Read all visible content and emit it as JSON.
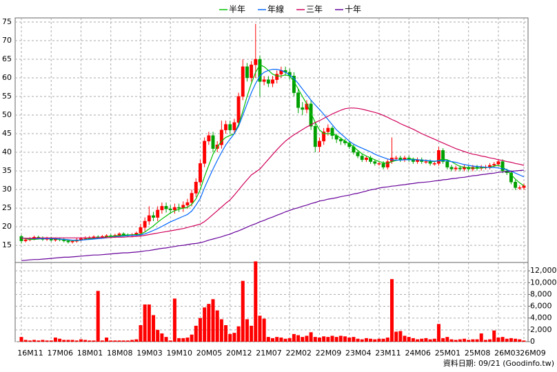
{
  "chart_data": {
    "type": "candlestick",
    "categories": [
      "16M11",
      null,
      null,
      null,
      null,
      null,
      null,
      "17M06",
      null,
      null,
      null,
      null,
      null,
      null,
      "18M01",
      null,
      null,
      null,
      null,
      null,
      null,
      "18M08",
      null,
      null,
      null,
      null,
      null,
      null,
      "19M03",
      null,
      null,
      null,
      null,
      null,
      null,
      "19M10",
      null,
      null,
      null,
      null,
      null,
      null,
      "20M05",
      null,
      null,
      null,
      null,
      null,
      null,
      "20M12",
      null,
      null,
      null,
      null,
      null,
      null,
      "21M07",
      null,
      null,
      null,
      null,
      null,
      null,
      "22M02",
      null,
      null,
      null,
      null,
      null,
      null,
      "22M09",
      null,
      null,
      null,
      null,
      null,
      null,
      "23M04",
      null,
      null,
      null,
      null,
      null,
      null,
      "23M11",
      null,
      null,
      null,
      null,
      null,
      null,
      "24M06",
      null,
      null,
      null,
      null,
      null,
      null,
      "25M01",
      null,
      null,
      null,
      null,
      null,
      null,
      "25M08",
      null,
      null,
      null,
      null,
      null,
      null,
      "26M03",
      null,
      null,
      null,
      null,
      null,
      "26M09"
    ],
    "open": [
      17.4,
      16.2,
      16.5,
      16.8,
      17.2,
      17.0,
      16.6,
      16.9,
      16.4,
      16.7,
      16.5,
      16.2,
      15.9,
      16.1,
      16.5,
      16.8,
      17.0,
      17.1,
      17.3,
      17.2,
      17.4,
      17.6,
      17.4,
      17.7,
      18.1,
      17.8,
      17.6,
      17.9,
      18.3,
      19.8,
      21.5,
      23.0,
      22.5,
      24.5,
      25.5,
      24.8,
      24.5,
      25.2,
      25.0,
      25.8,
      26.5,
      29.0,
      32.0,
      37.0,
      43.0,
      44.5,
      41.0,
      42.0,
      46.0,
      47.5,
      46.0,
      48.0,
      55.0,
      63.0,
      60.0,
      63.5,
      65.0,
      59.0,
      59.5,
      58.5,
      59.5,
      61.0,
      62.0,
      61.5,
      60.5,
      56.0,
      52.0,
      51.5,
      53.0,
      47.0,
      41.5,
      43.0,
      45.5,
      46.5,
      44.5,
      43.5,
      43.0,
      42.5,
      41.5,
      40.0,
      39.0,
      38.0,
      38.5,
      37.5,
      37.0,
      37.0,
      36.0,
      37.5,
      38.5,
      38.5,
      38.0,
      38.5,
      38.0,
      37.5,
      38.0,
      37.5,
      37.5,
      37.0,
      37.0,
      40.5,
      37.5,
      36.0,
      35.5,
      35.8,
      35.5,
      36.0,
      35.5,
      36.0,
      35.7,
      36.0,
      36.0,
      36.5,
      36.8,
      37.5,
      35.0,
      34.5,
      32.0,
      30.5,
      30.5
    ],
    "high": [
      17.8,
      16.9,
      17.2,
      17.6,
      17.6,
      17.4,
      17.3,
      17.3,
      17.1,
      17.1,
      16.9,
      16.6,
      16.5,
      16.9,
      17.2,
      17.4,
      17.5,
      17.7,
      17.7,
      17.8,
      18.0,
      18.0,
      18.1,
      18.5,
      18.5,
      18.2,
      18.3,
      18.7,
      20.8,
      22.5,
      25.5,
      24.0,
      25.5,
      26.5,
      26.5,
      25.8,
      26.2,
      26.2,
      26.8,
      27.5,
      30.0,
      33.0,
      38.0,
      44.0,
      45.5,
      45.5,
      43.0,
      48.5,
      48.5,
      48.5,
      49.0,
      56.0,
      65.0,
      64.0,
      64.5,
      74.5,
      66.0,
      60.5,
      60.5,
      60.5,
      62.0,
      63.0,
      63.0,
      62.5,
      61.5,
      57.0,
      53.5,
      54.0,
      54.0,
      48.0,
      44.0,
      46.5,
      47.5,
      47.0,
      45.0,
      44.0,
      43.6,
      43.1,
      42.1,
      40.6,
      39.6,
      39.1,
      39.1,
      38.1,
      37.6,
      37.6,
      38.1,
      44.0,
      39.1,
      39.1,
      39.1,
      39.1,
      38.6,
      38.6,
      38.6,
      38.1,
      38.1,
      37.6,
      41.5,
      41.1,
      38.1,
      36.6,
      36.4,
      36.4,
      36.6,
      36.6,
      36.6,
      36.6,
      36.6,
      36.6,
      37.1,
      37.4,
      38.1,
      38.1,
      35.6,
      35.1,
      32.6,
      31.1,
      31.6
    ],
    "low": [
      15.5,
      15.8,
      16.1,
      16.4,
      16.6,
      16.2,
      16.2,
      16.0,
      16.0,
      16.1,
      15.8,
      15.5,
      15.5,
      15.7,
      16.1,
      16.4,
      16.6,
      16.7,
      16.8,
      16.8,
      17.0,
      17.0,
      17.0,
      17.3,
      17.4,
      17.2,
      17.2,
      17.5,
      17.3,
      18.8,
      20.5,
      21.5,
      21.5,
      23.5,
      23.8,
      23.5,
      23.5,
      24.0,
      24.0,
      24.8,
      25.5,
      28.0,
      31.0,
      36.0,
      42.0,
      40.0,
      40.0,
      41.0,
      45.0,
      45.0,
      45.0,
      47.0,
      54.0,
      59.0,
      59.0,
      60.0,
      55.0,
      58.0,
      57.5,
      57.5,
      58.5,
      60.0,
      60.5,
      59.5,
      55.0,
      50.5,
      50.0,
      50.5,
      46.0,
      40.0,
      40.0,
      42.0,
      44.5,
      43.5,
      42.5,
      42.0,
      41.9,
      40.9,
      39.4,
      38.4,
      37.4,
      37.4,
      36.9,
      36.4,
      36.4,
      35.4,
      35.4,
      36.9,
      37.9,
      37.4,
      37.4,
      37.4,
      36.9,
      36.9,
      36.9,
      36.9,
      36.4,
      36.4,
      36.4,
      36.9,
      35.4,
      34.9,
      34.9,
      34.9,
      34.9,
      34.9,
      34.9,
      35.1,
      35.1,
      35.4,
      35.4,
      35.9,
      36.2,
      34.4,
      33.9,
      31.4,
      29.9,
      29.9,
      29.9
    ],
    "close": [
      16.2,
      16.5,
      16.8,
      17.2,
      17.0,
      16.6,
      16.9,
      16.4,
      16.7,
      16.5,
      16.2,
      15.9,
      16.1,
      16.5,
      16.8,
      17.0,
      17.1,
      17.3,
      17.2,
      17.4,
      17.6,
      17.4,
      17.7,
      18.1,
      17.8,
      17.6,
      17.9,
      18.3,
      19.8,
      21.5,
      23.0,
      22.5,
      24.5,
      25.5,
      24.8,
      24.5,
      25.2,
      25.0,
      25.8,
      26.5,
      29.0,
      32.0,
      37.0,
      43.0,
      44.5,
      41.0,
      42.0,
      46.0,
      47.5,
      46.0,
      48.0,
      55.0,
      63.0,
      60.0,
      63.5,
      65.0,
      59.0,
      59.5,
      58.5,
      59.5,
      61.0,
      62.0,
      61.5,
      60.5,
      56.0,
      52.0,
      51.5,
      53.0,
      47.0,
      41.5,
      43.0,
      45.5,
      46.5,
      44.5,
      43.5,
      43.0,
      42.5,
      41.5,
      40.0,
      39.0,
      38.0,
      38.5,
      37.5,
      37.0,
      37.0,
      36.0,
      37.5,
      38.5,
      38.5,
      38.0,
      38.5,
      38.0,
      37.5,
      38.0,
      37.5,
      37.5,
      37.0,
      37.0,
      40.5,
      37.5,
      36.0,
      35.5,
      35.8,
      35.5,
      36.0,
      35.5,
      36.0,
      35.7,
      36.0,
      36.0,
      36.5,
      36.8,
      37.5,
      35.0,
      34.5,
      32.0,
      30.5,
      30.5,
      31.0
    ],
    "up_color": "#ff0000",
    "down_color": "#00a000",
    "series": [
      {
        "name": "半年",
        "color": "#00c000",
        "values": [
          17.0,
          16.8,
          16.6,
          16.6,
          16.7,
          16.8,
          16.8,
          16.8,
          16.7,
          16.6,
          16.5,
          16.4,
          16.3,
          16.3,
          16.4,
          16.6,
          16.8,
          16.9,
          17.0,
          17.1,
          17.3,
          17.4,
          17.5,
          17.6,
          17.7,
          17.8,
          17.8,
          17.9,
          18.0,
          18.6,
          19.4,
          20.2,
          21.2,
          22.1,
          22.9,
          23.7,
          24.3,
          24.7,
          25.0,
          25.2,
          26.0,
          27.5,
          30.0,
          33.5,
          36.5,
          39.5,
          41.5,
          43.0,
          44.0,
          44.5,
          45.0,
          47.5,
          51.0,
          55.0,
          58.5,
          61.5,
          63.5,
          63.0,
          62.0,
          61.0,
          60.5,
          60.5,
          60.8,
          60.5,
          59.0,
          57.0,
          55.0,
          53.0,
          50.5,
          48.0,
          46.0,
          45.0,
          45.0,
          45.0,
          44.5,
          43.8,
          43.0,
          42.3,
          41.5,
          40.5,
          39.6,
          39.0,
          38.5,
          38.0,
          37.5,
          37.2,
          37.0,
          37.5,
          37.8,
          38.0,
          38.0,
          38.2,
          38.2,
          38.0,
          37.9,
          37.8,
          37.6,
          37.5,
          37.8,
          38.2,
          38.0,
          37.5,
          36.8,
          36.2,
          36.0,
          35.8,
          35.8,
          35.7,
          35.8,
          35.9,
          36.0,
          36.3,
          36.5,
          36.0,
          35.2,
          34.0,
          32.8,
          31.8,
          31.0
        ]
      },
      {
        "name": "年線",
        "color": "#0066ff",
        "values": [
          17.0,
          16.9,
          16.8,
          16.8,
          16.8,
          16.8,
          16.8,
          16.8,
          16.8,
          16.7,
          16.6,
          16.5,
          16.4,
          16.4,
          16.4,
          16.5,
          16.6,
          16.7,
          16.8,
          16.9,
          17.0,
          17.2,
          17.3,
          17.4,
          17.5,
          17.6,
          17.7,
          17.7,
          17.8,
          18.1,
          18.5,
          19.0,
          19.5,
          20.1,
          20.7,
          21.3,
          21.8,
          22.3,
          22.8,
          23.3,
          24.2,
          25.8,
          27.6,
          30.5,
          33.0,
          35.5,
          37.8,
          40.0,
          42.0,
          43.5,
          45.0,
          47.0,
          50.0,
          53.0,
          56.0,
          58.5,
          60.5,
          61.5,
          62.0,
          62.3,
          62.3,
          62.0,
          61.5,
          60.8,
          59.8,
          58.5,
          57.0,
          55.5,
          54.0,
          52.7,
          51.5,
          50.2,
          48.8,
          47.4,
          46.0,
          45.0,
          44.0,
          43.0,
          42.2,
          41.6,
          41.1,
          40.6,
          40.1,
          39.5,
          39.0,
          38.6,
          38.2,
          38.0,
          37.9,
          37.9,
          38.0,
          38.0,
          38.0,
          38.0,
          37.9,
          37.8,
          37.7,
          37.6,
          37.7,
          37.8,
          37.7,
          37.5,
          37.3,
          37.0,
          36.7,
          36.5,
          36.3,
          36.2,
          36.1,
          36.0,
          35.9,
          35.9,
          35.8,
          35.6,
          35.3,
          34.9,
          34.4,
          33.9,
          33.4
        ]
      },
      {
        "name": "三年",
        "color": "#d0005a",
        "values": [
          16.9,
          16.9,
          16.9,
          16.9,
          17.0,
          17.0,
          17.0,
          17.0,
          17.0,
          17.0,
          17.0,
          17.0,
          17.0,
          17.0,
          17.0,
          17.0,
          17.0,
          17.0,
          17.1,
          17.1,
          17.1,
          17.1,
          17.2,
          17.2,
          17.2,
          17.3,
          17.3,
          17.4,
          17.5,
          17.7,
          17.9,
          18.1,
          18.3,
          18.5,
          18.7,
          18.9,
          19.1,
          19.3,
          19.5,
          19.8,
          20.1,
          20.4,
          20.7,
          21.4,
          22.3,
          23.3,
          24.3,
          25.3,
          26.3,
          27.2,
          28.5,
          29.9,
          31.3,
          32.6,
          33.9,
          34.7,
          35.5,
          36.8,
          38.1,
          39.4,
          40.7,
          41.9,
          43.0,
          43.9,
          44.7,
          45.4,
          46.1,
          46.8,
          47.4,
          48.0,
          48.5,
          49.1,
          49.7,
          50.3,
          50.8,
          51.3,
          51.7,
          51.9,
          51.9,
          51.8,
          51.6,
          51.3,
          51.0,
          50.7,
          50.4,
          49.9,
          49.4,
          48.8,
          48.3,
          47.7,
          47.2,
          46.7,
          46.2,
          45.6,
          45.0,
          44.5,
          44.0,
          43.5,
          43.0,
          42.5,
          42.0,
          41.5,
          41.0,
          40.6,
          40.2,
          39.8,
          39.5,
          39.3,
          39.0,
          38.8,
          38.5,
          38.3,
          38.0,
          37.8,
          37.5,
          37.3,
          37.0,
          36.8,
          36.5
        ]
      },
      {
        "name": "十年",
        "color": "#660099",
        "values": [
          10.9,
          11.0,
          11.1,
          11.2,
          11.2,
          11.3,
          11.4,
          11.5,
          11.6,
          11.7,
          11.8,
          11.8,
          11.9,
          12.0,
          12.1,
          12.2,
          12.3,
          12.4,
          12.4,
          12.5,
          12.6,
          12.7,
          12.8,
          12.9,
          13.0,
          13.0,
          13.1,
          13.2,
          13.3,
          13.5,
          13.6,
          13.8,
          14.0,
          14.2,
          14.3,
          14.5,
          14.7,
          14.9,
          15.0,
          15.2,
          15.4,
          15.5,
          15.7,
          16.0,
          16.4,
          16.7,
          17.0,
          17.3,
          17.7,
          18.0,
          18.5,
          18.9,
          19.4,
          19.9,
          20.4,
          20.8,
          21.3,
          21.7,
          22.2,
          22.6,
          23.1,
          23.5,
          24.0,
          24.4,
          24.8,
          25.1,
          25.5,
          25.8,
          26.2,
          26.5,
          26.9,
          27.1,
          27.4,
          27.6,
          27.8,
          28.1,
          28.3,
          28.5,
          28.8,
          29.0,
          29.3,
          29.6,
          29.9,
          30.1,
          30.4,
          30.6,
          30.7,
          30.9,
          31.0,
          31.2,
          31.3,
          31.5,
          31.6,
          31.8,
          31.9,
          32.0,
          32.1,
          32.3,
          32.4,
          32.6,
          32.7,
          32.9,
          33.0,
          33.2,
          33.3,
          33.5,
          33.7,
          33.8,
          34.0,
          34.1,
          34.3,
          34.4,
          34.6,
          34.7,
          34.8,
          34.9,
          35.0,
          35.1,
          35.2
        ]
      }
    ],
    "ylim": [
      10.4,
      76.1
    ],
    "yticks": [
      15,
      20,
      25,
      30,
      35,
      40,
      45,
      50,
      55,
      60,
      65,
      70,
      75
    ],
    "grid": true,
    "volume": {
      "color": "#ff0000",
      "values": [
        800,
        300,
        200,
        300,
        200,
        300,
        200,
        200,
        700,
        500,
        300,
        300,
        300,
        200,
        400,
        300,
        200,
        200,
        8600,
        200,
        700,
        200,
        200,
        200,
        200,
        200,
        300,
        400,
        2800,
        6300,
        6300,
        4500,
        2000,
        1400,
        800,
        200,
        7300,
        600,
        600,
        700,
        1200,
        2700,
        4000,
        5800,
        6400,
        7200,
        5300,
        3800,
        2800,
        1300,
        1500,
        2600,
        10300,
        3800,
        2700,
        13600,
        4400,
        3900,
        800,
        600,
        800,
        700,
        500,
        600,
        1300,
        1100,
        800,
        1000,
        1600,
        800,
        700,
        900,
        800,
        1000,
        800,
        1000,
        900,
        700,
        800,
        500,
        400,
        600,
        500,
        400,
        500,
        500,
        700,
        10600,
        1700,
        1800,
        1000,
        800,
        600,
        400,
        500,
        600,
        400,
        500,
        3000,
        600,
        800,
        400,
        300,
        400,
        500,
        300,
        400,
        400,
        1400,
        300,
        400,
        1900,
        700,
        800,
        500,
        600,
        500,
        400,
        200
      ],
      "ylim": [
        0,
        14000
      ],
      "yticks": [
        0,
        {
          "value": 2000,
          "label": "2,000"
        },
        {
          "value": 4000,
          "label": "4,000"
        },
        {
          "value": 6000,
          "label": "6,000"
        },
        {
          "value": 8000,
          "label": "8,000"
        },
        {
          "value": 10000,
          "label": "10,000"
        },
        {
          "value": 12000,
          "label": "12,000"
        }
      ]
    },
    "footer": "資料日期: 09/21 (Goodinfo.tw)"
  }
}
